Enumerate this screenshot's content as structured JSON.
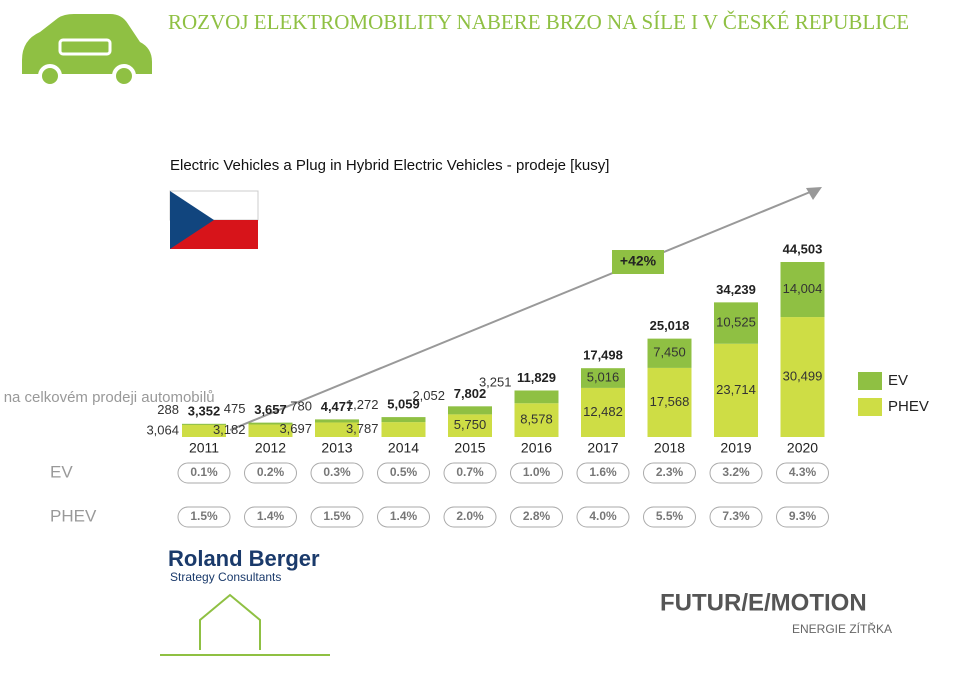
{
  "header": {
    "title": "ROZVOJ ELEKTROMOBILITY NABERE BRZO NA SÍLE I V ČESKÉ REPUBLICE"
  },
  "side_label": "Podíl na celkovém prodeji automobilů",
  "logos": {
    "left": "Roland Berger",
    "left_sub": "Strategy Consultants",
    "right": "FUTUR/E/MOTION",
    "right_sub": "ENERGIE ZÍTŘKA"
  },
  "chart_data": {
    "type": "stacked-bar",
    "title": "Electric Vehicles a Plug in Hybrid Electric Vehicles - prodeje [kusy]",
    "annotation": "+42%",
    "categories": [
      "2011",
      "2012",
      "2013",
      "2014",
      "2015",
      "2016",
      "2017",
      "2018",
      "2019",
      "2020"
    ],
    "series": [
      {
        "name": "PHEV",
        "color": "#cedd45",
        "values": [
          3064,
          3182,
          3697,
          3787,
          5750,
          8578,
          12482,
          17568,
          23714,
          30499
        ],
        "value_labels": [
          "3,064",
          "3,182",
          "3,697",
          "3,787",
          "5,750",
          "8,578",
          "12,482",
          "17,568",
          "23,714",
          "30,499"
        ]
      },
      {
        "name": "EV",
        "color": "#8fc043",
        "values": [
          288,
          475,
          780,
          1272,
          2052,
          3251,
          5016,
          7450,
          10525,
          14004
        ],
        "value_labels": [
          "288",
          "475",
          "780",
          "1,272",
          "2,052",
          "3,251",
          "5,016",
          "7,450",
          "10,525",
          "14,004"
        ]
      }
    ],
    "totals": {
      "values": [
        3352,
        3657,
        4477,
        5059,
        7802,
        11829,
        17498,
        25018,
        34239,
        44503
      ],
      "value_labels": [
        "3,352",
        "3,657",
        "4,477",
        "5,059",
        "7,802",
        "11,829",
        "17,498",
        "25,018",
        "34,239",
        "44,503"
      ]
    },
    "share_rows": [
      {
        "label": "EV",
        "values": [
          0.1,
          0.2,
          0.3,
          0.5,
          0.7,
          1.0,
          1.6,
          2.3,
          3.2,
          4.3
        ],
        "value_labels": [
          "0.1%",
          "0.2%",
          "0.3%",
          "0.5%",
          "0.7%",
          "1.0%",
          "1.6%",
          "2.3%",
          "3.2%",
          "4.3%"
        ]
      },
      {
        "label": "PHEV",
        "values": [
          1.5,
          1.4,
          1.5,
          1.4,
          2.0,
          2.8,
          4.0,
          5.5,
          7.3,
          9.3
        ],
        "value_labels": [
          "1.5%",
          "1.4%",
          "1.5%",
          "1.4%",
          "2.0%",
          "2.8%",
          "4.0%",
          "5.5%",
          "7.3%",
          "9.3%"
        ]
      }
    ],
    "legend_position": "right"
  }
}
